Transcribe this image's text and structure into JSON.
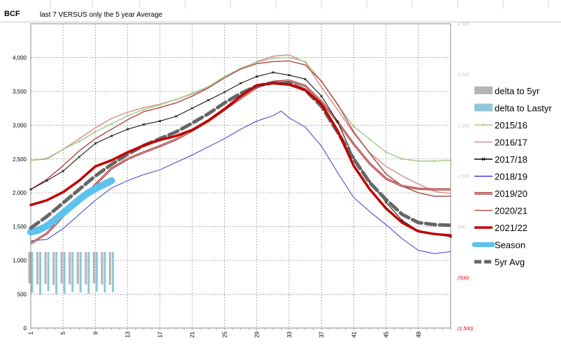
{
  "header": {
    "unit_label": "BCF",
    "title": "last 7 VERSUS only the 5 year Average"
  },
  "chart_data": {
    "type": "line",
    "ylabel": "",
    "xlabel": "",
    "ylim": [
      0,
      4500
    ],
    "yticks": [
      "0",
      "500",
      "1,000",
      "1,500",
      "2,000",
      "2,500",
      "3,000",
      "3,500",
      "4,000"
    ],
    "xticks": [
      "1",
      "5",
      "9",
      "13",
      "17",
      "21",
      "25",
      "29",
      "33",
      "37",
      "41",
      "45",
      "49"
    ],
    "secondary_yticks": [
      {
        "label": "4,500",
        "value": 4500
      },
      {
        "label": "3,500",
        "value": 3500
      },
      {
        "label": "2,500",
        "value": 2500
      },
      {
        "label": "1,500",
        "value": 1500
      },
      {
        "label": "500",
        "value": 500
      },
      {
        "label": "(500)",
        "value": -500
      },
      {
        "label": "(1,500)",
        "value": -1500
      }
    ],
    "secondary_ylim": [
      -1500,
      4500
    ],
    "grid": true,
    "legend_position": "right",
    "series": [
      {
        "name": "2015/16",
        "color": "#a9c98c",
        "width": 1.5,
        "marker": "dot",
        "x": [
          1,
          3,
          5,
          7,
          9,
          11,
          13,
          15,
          17,
          19,
          21,
          23,
          25,
          27,
          29,
          31,
          33,
          35,
          37,
          39,
          41,
          43,
          45,
          47,
          49,
          51,
          53
        ],
        "y": [
          2480,
          2510,
          2640,
          2760,
          2900,
          3020,
          3140,
          3230,
          3300,
          3380,
          3470,
          3570,
          3720,
          3840,
          3930,
          3990,
          4000,
          3940,
          3650,
          3300,
          2980,
          2790,
          2600,
          2500,
          2470,
          2470,
          2480
        ]
      },
      {
        "name": "2016/17",
        "color": "#d99090",
        "width": 1.5,
        "x": [
          1,
          3,
          5,
          7,
          9,
          11,
          13,
          15,
          17,
          19,
          21,
          23,
          25,
          27,
          29,
          31,
          33,
          35,
          37,
          39,
          41,
          43,
          45,
          47,
          49,
          51,
          53
        ],
        "y": [
          2480,
          2500,
          2640,
          2800,
          2960,
          3100,
          3190,
          3260,
          3310,
          3380,
          3460,
          3560,
          3700,
          3830,
          3940,
          4020,
          4040,
          3930,
          3560,
          3230,
          2880,
          2590,
          2390,
          2250,
          2130,
          2020,
          1990
        ]
      },
      {
        "name": "2017/18",
        "color": "#000000",
        "width": 1,
        "marker": "x",
        "x": [
          1,
          3,
          5,
          7,
          9,
          11,
          13,
          15,
          17,
          19,
          21,
          23,
          25,
          27,
          29,
          31,
          33,
          35,
          37,
          39,
          41,
          43,
          45,
          47,
          49,
          51,
          53
        ],
        "y": [
          2050,
          2180,
          2320,
          2530,
          2730,
          2840,
          2940,
          3010,
          3060,
          3130,
          3250,
          3370,
          3490,
          3620,
          3720,
          3780,
          3740,
          3680,
          3430,
          3050,
          2520,
          2170,
          1860,
          1590,
          1440,
          1390,
          1350
        ]
      },
      {
        "name": "2018/19",
        "color": "#3a3ad0",
        "width": 1,
        "x": [
          1,
          3,
          5,
          7,
          9,
          11,
          13,
          15,
          17,
          19,
          21,
          23,
          25,
          27,
          29,
          31,
          32,
          33,
          35,
          37,
          39,
          41,
          43,
          45,
          47,
          49,
          51,
          53
        ],
        "y": [
          1290,
          1310,
          1470,
          1680,
          1890,
          2070,
          2180,
          2270,
          2340,
          2450,
          2560,
          2680,
          2800,
          2940,
          3060,
          3140,
          3210,
          3110,
          2970,
          2690,
          2300,
          1930,
          1720,
          1530,
          1320,
          1150,
          1100,
          1130
        ]
      },
      {
        "name": "2019/20",
        "color": "#a03030",
        "width": 2.4,
        "double": true,
        "x": [
          1,
          3,
          5,
          7,
          9,
          11,
          13,
          15,
          17,
          19,
          21,
          23,
          25,
          27,
          29,
          31,
          33,
          35,
          37,
          39,
          41,
          43,
          45,
          47,
          49,
          51,
          53
        ],
        "y": [
          1250,
          1400,
          1650,
          1880,
          2120,
          2360,
          2500,
          2600,
          2690,
          2790,
          2920,
          3060,
          3230,
          3400,
          3560,
          3640,
          3660,
          3580,
          3350,
          3050,
          2720,
          2430,
          2210,
          2100,
          2060,
          2050,
          2050
        ]
      },
      {
        "name": "2020/21",
        "color": "#b05050",
        "width": 1.5,
        "x": [
          1,
          3,
          5,
          7,
          9,
          11,
          13,
          15,
          17,
          19,
          21,
          23,
          25,
          27,
          29,
          31,
          33,
          35,
          37,
          39,
          41,
          43,
          45,
          47,
          49,
          51,
          53
        ],
        "y": [
          2050,
          2200,
          2400,
          2620,
          2800,
          2940,
          3080,
          3200,
          3260,
          3330,
          3430,
          3550,
          3700,
          3830,
          3910,
          3940,
          3950,
          3890,
          3650,
          3310,
          2900,
          2580,
          2280,
          2100,
          2000,
          1950,
          1950
        ]
      },
      {
        "name": "2021/22",
        "color": "#c00000",
        "width": 3.5,
        "x": [
          1,
          3,
          5,
          7,
          9,
          11,
          13,
          15,
          17,
          19,
          21,
          23,
          25,
          27,
          29,
          31,
          33,
          35,
          37,
          39,
          41,
          43,
          45,
          47,
          49,
          51,
          53
        ],
        "y": [
          1820,
          1890,
          2010,
          2180,
          2390,
          2480,
          2600,
          2700,
          2780,
          2840,
          2930,
          3070,
          3240,
          3430,
          3590,
          3620,
          3600,
          3520,
          3310,
          2920,
          2400,
          2050,
          1770,
          1560,
          1430,
          1390,
          1370
        ]
      },
      {
        "name": "Season",
        "color": "#5bc3eb",
        "width": 10,
        "x": [
          1,
          2,
          3,
          4,
          5,
          6,
          7,
          8,
          9,
          10,
          11
        ],
        "y": [
          1420,
          1450,
          1510,
          1600,
          1700,
          1800,
          1900,
          1990,
          2060,
          2120,
          2180
        ]
      },
      {
        "name": "5yr Avg",
        "color": "#666666",
        "width": 5,
        "dash": "14,6",
        "x": [
          1,
          3,
          5,
          7,
          9,
          11,
          13,
          15,
          17,
          19,
          21,
          23,
          25,
          27,
          29,
          31,
          33,
          35,
          37,
          39,
          41,
          43,
          45,
          47,
          49,
          51,
          53
        ],
        "y": [
          1480,
          1650,
          1850,
          2050,
          2250,
          2420,
          2570,
          2700,
          2800,
          2900,
          3030,
          3170,
          3330,
          3470,
          3580,
          3630,
          3620,
          3520,
          3280,
          2900,
          2500,
          2150,
          1900,
          1680,
          1560,
          1530,
          1520
        ]
      }
    ],
    "bars": [
      {
        "name": "delta to 5yr",
        "color": "#b4b4b4",
        "x": [
          1,
          2,
          3,
          4,
          5,
          6,
          7,
          8,
          9,
          10,
          11
        ],
        "values": [
          -620,
          -640,
          -630,
          -650,
          -620,
          -640,
          -630,
          -640,
          -620,
          -640,
          -650
        ]
      },
      {
        "name": "delta to Lastyr",
        "color": "#8fc6d8",
        "x": [
          1,
          2,
          3,
          4,
          5,
          6,
          7,
          8,
          9,
          10,
          11
        ],
        "values": [
          -810,
          -850,
          -770,
          -830,
          -820,
          -790,
          -800,
          -820,
          -780,
          -800,
          -790
        ]
      }
    ],
    "legend": [
      "delta to 5yr",
      "delta to Lastyr",
      "2015/16",
      "2016/17",
      "2017/18",
      "2018/19",
      "2019/20",
      "2020/21",
      "2021/22",
      "Season",
      "5yr Avg"
    ],
    "legend_display": {
      "5yr Avg": "5yr Avg"
    }
  }
}
